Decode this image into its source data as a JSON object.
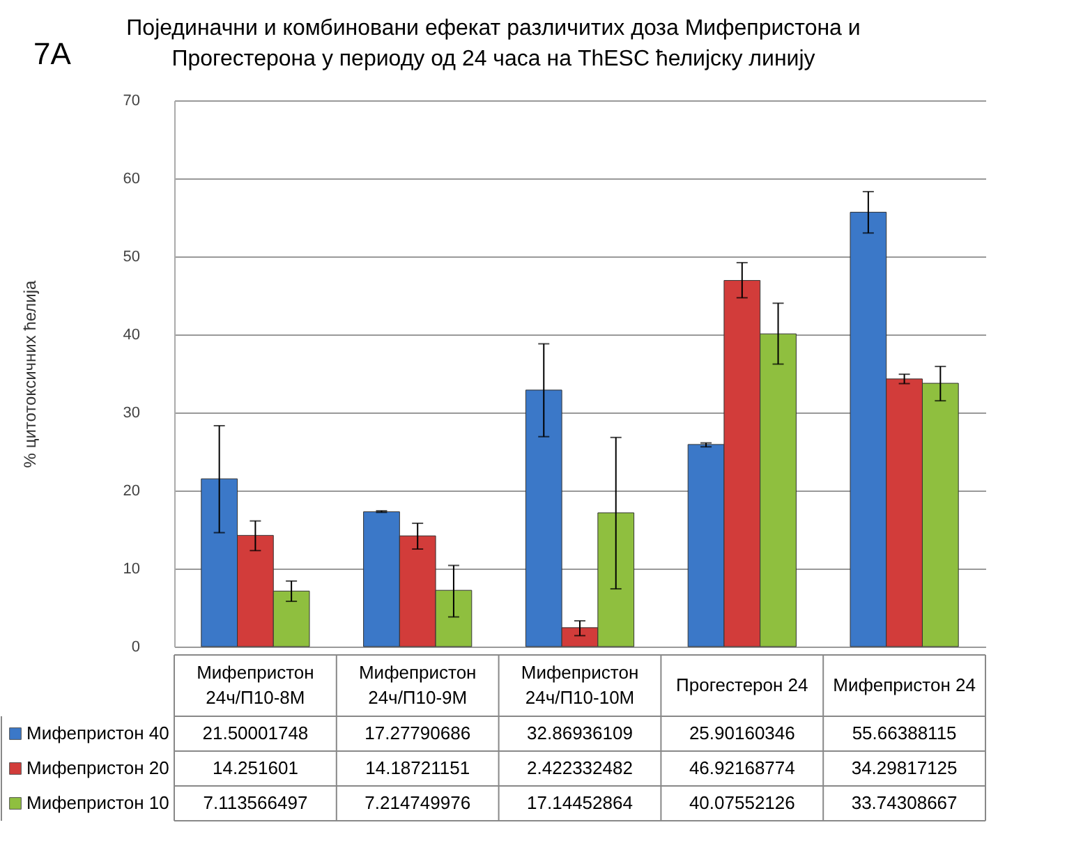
{
  "chart_data": {
    "type": "bar",
    "title": "Појединачни и комбиновани ефекат различитих доза Мифепристона и Прогестерона у периоду од 24 часа на ThESC ћелијску линију",
    "ylabel": "% цитотоксичних ћелија",
    "annotations": [
      "7A"
    ],
    "categories": [
      "Мифепристон 24ч/П10-8М",
      "Мифепристон 24ч/П10-9М",
      "Мифепристон 24ч/П10-10М",
      "Прогестерон 24",
      "Мифепристон 24"
    ],
    "series": [
      {
        "name": "Мифепристон 40",
        "color": "#3b78c8",
        "values": [
          21.50001748,
          17.27790686,
          32.86936109,
          25.90160346,
          55.66388115
        ],
        "errors": [
          [
            14.6,
            28.3
          ],
          [
            17.2,
            17.4
          ],
          [
            26.9,
            38.8
          ],
          [
            25.6,
            26.1
          ],
          [
            53.0,
            58.3
          ]
        ]
      },
      {
        "name": "Мифепристон 20",
        "color": "#d23c3a",
        "values": [
          14.251601,
          14.18721151,
          2.422332482,
          46.92168774,
          34.29817125
        ],
        "errors": [
          [
            12.3,
            16.1
          ],
          [
            12.5,
            15.8
          ],
          [
            1.4,
            3.3
          ],
          [
            44.7,
            49.2
          ],
          [
            33.7,
            34.9
          ]
        ]
      },
      {
        "name": "Мифепристон 10",
        "color": "#8fbf3f",
        "values": [
          7.113566497,
          7.214749976,
          17.14452864,
          40.07552126,
          33.74308667
        ],
        "errors": [
          [
            5.8,
            8.4
          ],
          [
            3.8,
            10.4
          ],
          [
            7.4,
            26.8
          ],
          [
            36.2,
            44.0
          ],
          [
            31.5,
            35.9
          ]
        ]
      }
    ],
    "ylim": [
      0,
      70
    ],
    "yticks": [
      0,
      10,
      20,
      30,
      40,
      50,
      60,
      70
    ],
    "grid": "y",
    "legend": "bottom left",
    "data_labels": true
  }
}
